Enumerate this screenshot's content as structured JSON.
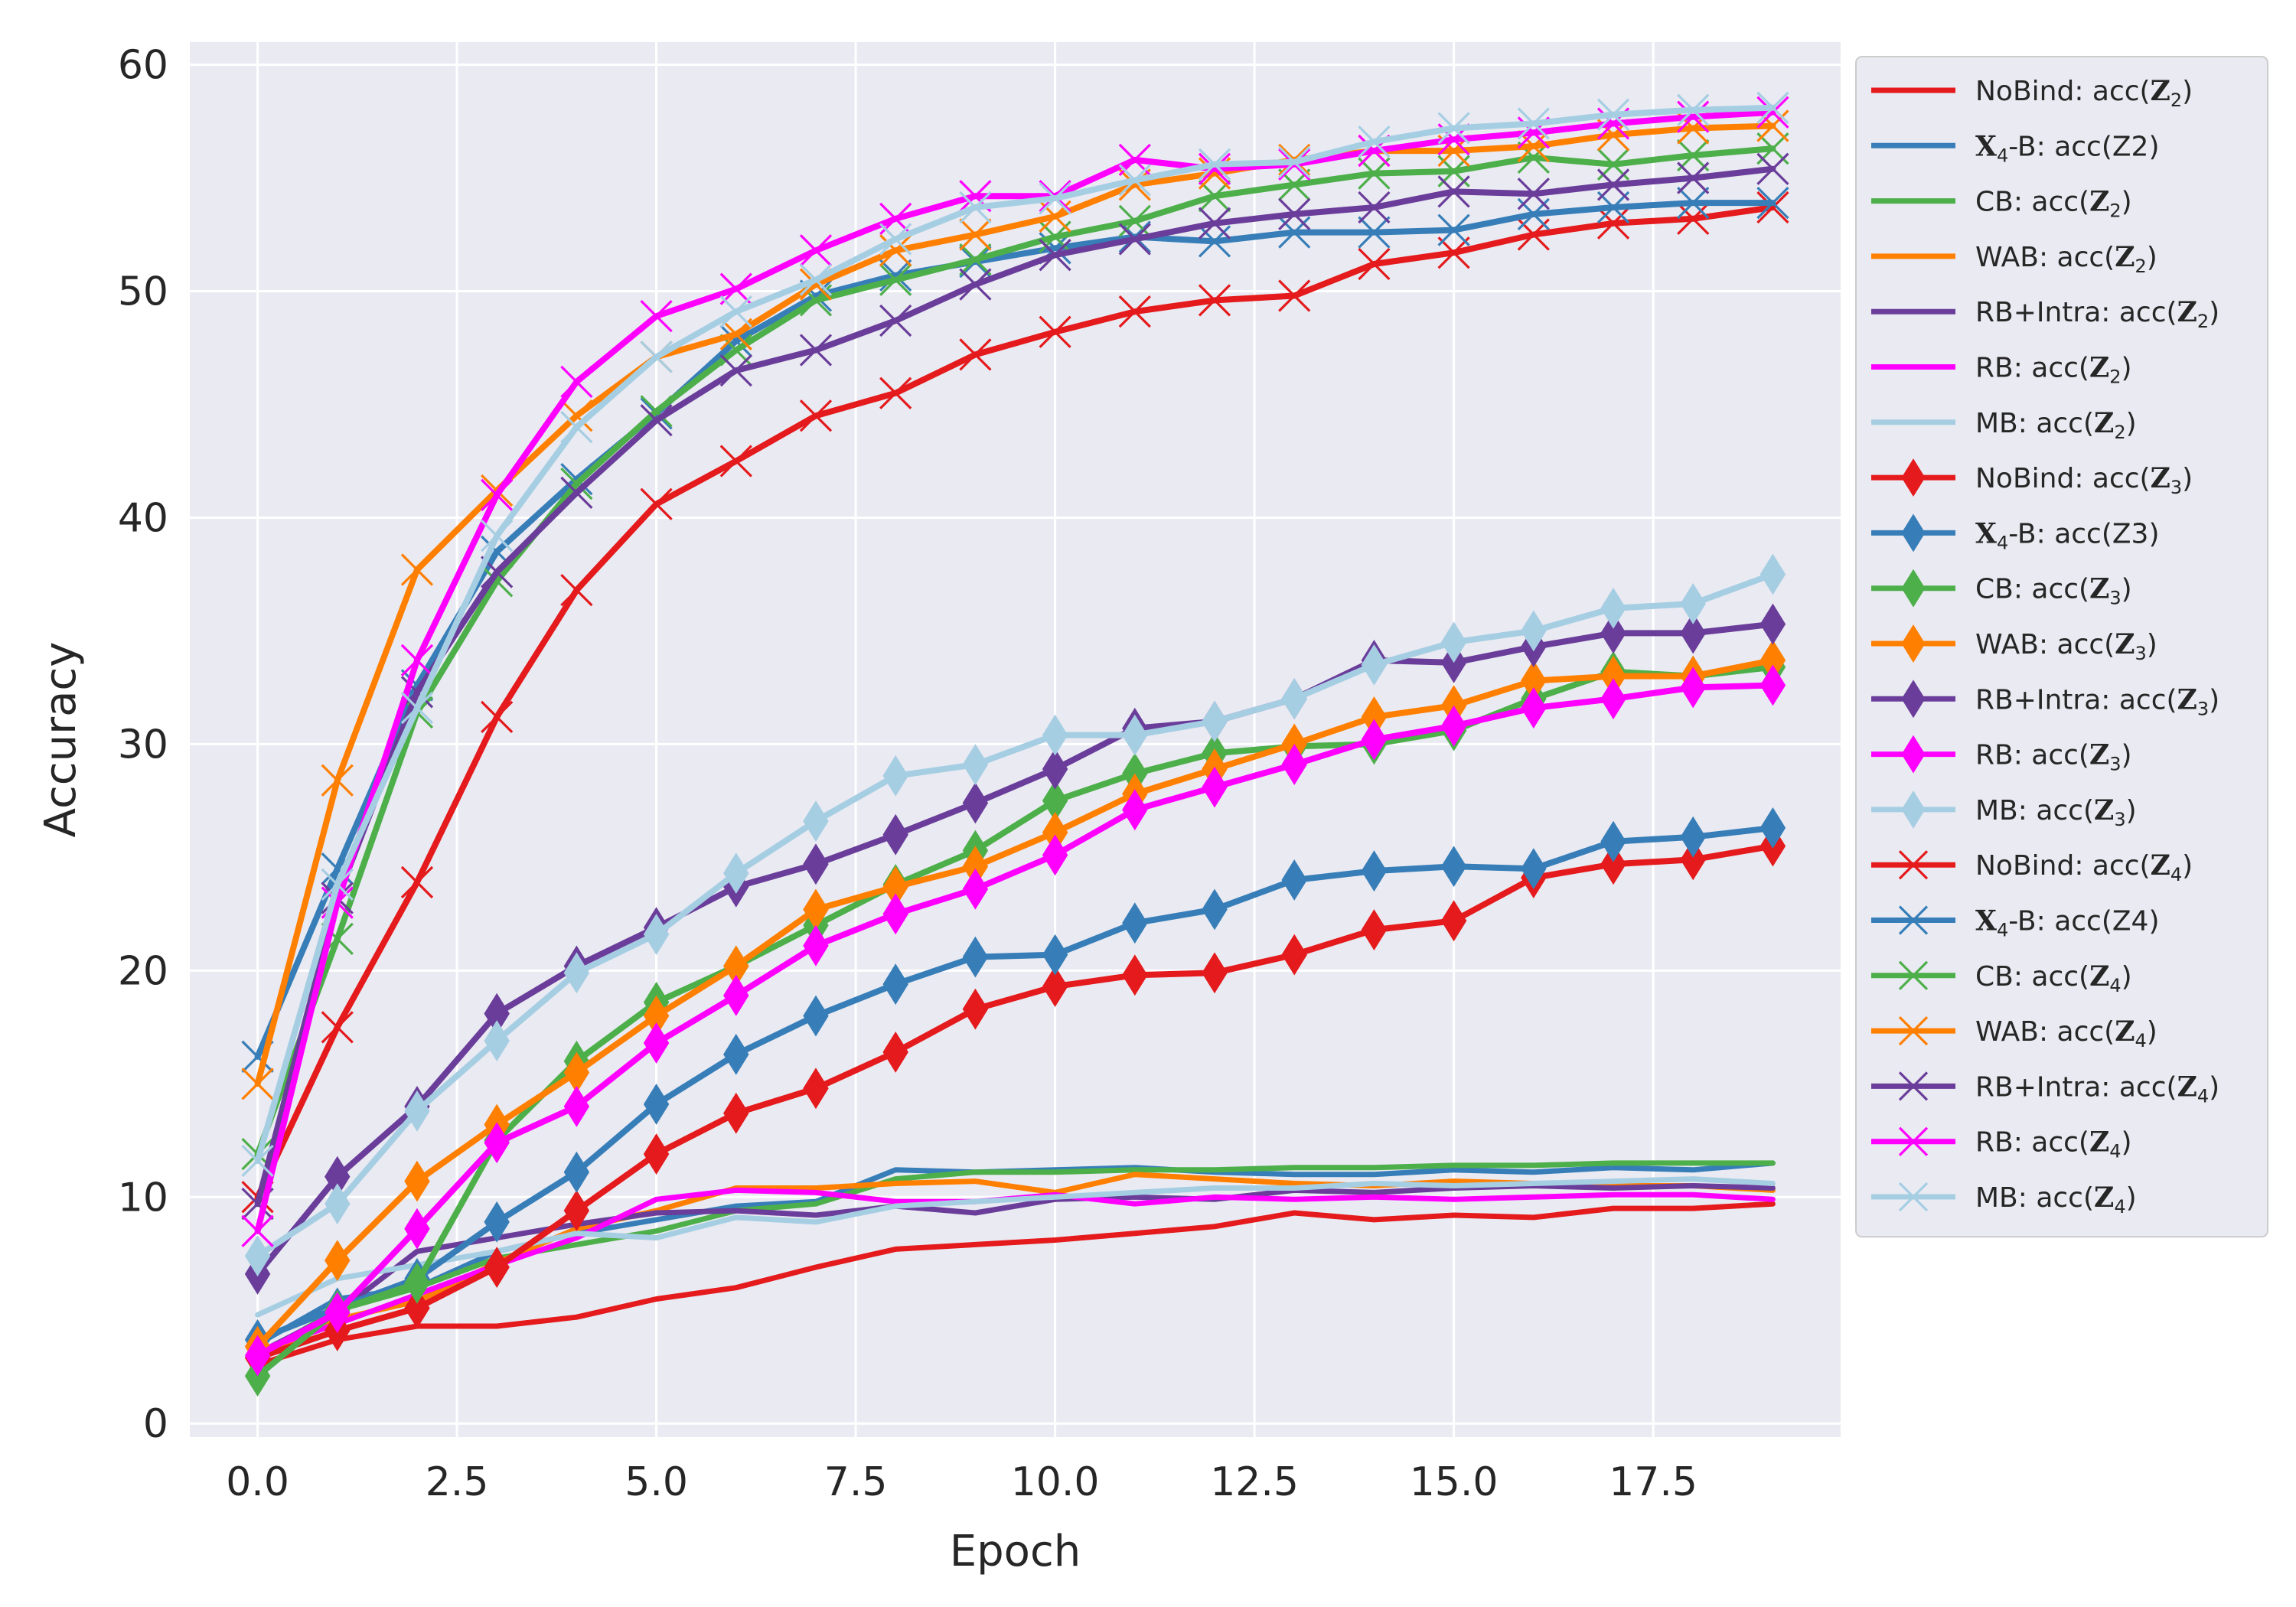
{
  "chart_data": {
    "type": "line",
    "title": "",
    "xlabel": "Epoch",
    "ylabel": "Accuracy",
    "xlim": [
      -0.85,
      19.85
    ],
    "ylim": [
      -0.6,
      61.0
    ],
    "xticks": [
      0.0,
      2.5,
      5.0,
      7.5,
      10.0,
      12.5,
      15.0,
      17.5
    ],
    "xtick_labels": [
      "0.0",
      "2.5",
      "5.0",
      "7.5",
      "10.0",
      "12.5",
      "15.0",
      "17.5"
    ],
    "yticks": [
      0,
      10,
      20,
      30,
      40,
      50,
      60
    ],
    "ytick_labels": [
      "0",
      "10",
      "20",
      "30",
      "40",
      "50",
      "60"
    ],
    "grid": true,
    "legend_position": "outside-right",
    "x": [
      0,
      1,
      2,
      3,
      4,
      5,
      6,
      7,
      8,
      9,
      10,
      11,
      12,
      13,
      14,
      15,
      16,
      17,
      18,
      19
    ],
    "series": [
      {
        "name": "NoBind: acc(Z2)",
        "label_prefix": "NoBind: acc(",
        "label_var": "Z",
        "label_sub": "2",
        "label_suffix": ")",
        "color": "#e41a1c",
        "marker": "none",
        "values": [
          2.6,
          3.7,
          4.3,
          4.3,
          4.7,
          5.5,
          6.0,
          6.9,
          7.7,
          7.9,
          8.1,
          8.4,
          8.7,
          9.3,
          9.0,
          9.2,
          9.1,
          9.5,
          9.5,
          9.7
        ]
      },
      {
        "name": "X4-B: acc(Z2)",
        "label_prefix": "",
        "label_var": "X",
        "label_sub": "4",
        "label_suffix": "-B: acc(Z2)",
        "color": "#377eb8",
        "marker": "none",
        "values": [
          3.5,
          5.5,
          6.0,
          7.6,
          8.4,
          9.0,
          9.6,
          9.8,
          11.2,
          11.1,
          11.2,
          11.3,
          11.1,
          11.0,
          11.0,
          11.2,
          11.1,
          11.3,
          11.2,
          11.5
        ]
      },
      {
        "name": "CB: acc(Z2)",
        "label_prefix": "CB: acc(",
        "label_var": "Z",
        "label_sub": "2",
        "label_suffix": ")",
        "color": "#4daf4a",
        "marker": "none",
        "values": [
          3.0,
          5.0,
          6.0,
          7.3,
          7.9,
          8.5,
          9.4,
          9.7,
          10.8,
          11.1,
          11.1,
          11.2,
          11.2,
          11.3,
          11.3,
          11.4,
          11.4,
          11.5,
          11.5,
          11.5
        ]
      },
      {
        "name": "WAB: acc(Z2)",
        "label_prefix": "WAB: acc(",
        "label_var": "Z",
        "label_sub": "2",
        "label_suffix": ")",
        "color": "#ff7f00",
        "marker": "none",
        "values": [
          2.8,
          4.6,
          5.4,
          7.1,
          8.6,
          9.4,
          10.4,
          10.4,
          10.6,
          10.7,
          10.2,
          11.0,
          10.8,
          10.6,
          10.5,
          10.7,
          10.6,
          10.5,
          10.5,
          10.3
        ]
      },
      {
        "name": "RB+Intra: acc(Z2)",
        "label_prefix": "RB+Intra: acc(",
        "label_var": "Z",
        "label_sub": "2",
        "label_suffix": ")",
        "color": "#6a3d9a",
        "marker": "none",
        "values": [
          3.1,
          4.9,
          7.6,
          8.2,
          8.8,
          9.3,
          9.4,
          9.2,
          9.6,
          9.3,
          9.9,
          10.0,
          9.9,
          10.3,
          10.2,
          10.4,
          10.5,
          10.4,
          10.5,
          10.4
        ]
      },
      {
        "name": "RB: acc(Z2)",
        "label_prefix": "RB: acc(",
        "label_var": "Z",
        "label_sub": "2",
        "label_suffix": ")",
        "color": "#ff00ff",
        "marker": "none",
        "values": [
          3.2,
          4.4,
          5.7,
          7.0,
          8.2,
          9.9,
          10.3,
          10.2,
          9.8,
          9.8,
          10.1,
          9.7,
          10.0,
          9.9,
          10.0,
          9.9,
          10.0,
          10.1,
          10.1,
          9.9
        ]
      },
      {
        "name": "MB: acc(Z2)",
        "label_prefix": "MB: acc(",
        "label_var": "Z",
        "label_sub": "2",
        "label_suffix": ")",
        "color": "#a6cee3",
        "marker": "none",
        "values": [
          4.8,
          6.4,
          7.0,
          7.6,
          8.4,
          8.2,
          9.1,
          8.9,
          9.6,
          9.8,
          10.0,
          10.2,
          10.4,
          10.4,
          10.6,
          10.5,
          10.6,
          10.7,
          10.8,
          10.6
        ]
      },
      {
        "name": "NoBind: acc(Z3)",
        "label_prefix": "NoBind: acc(",
        "label_var": "Z",
        "label_sub": "3",
        "label_suffix": ")",
        "color": "#e41a1c",
        "marker": "diamond",
        "values": [
          2.9,
          4.1,
          5.1,
          6.9,
          9.4,
          11.9,
          13.7,
          14.8,
          16.4,
          18.3,
          19.3,
          19.8,
          19.9,
          20.7,
          21.8,
          22.2,
          24.1,
          24.7,
          24.9,
          25.5
        ]
      },
      {
        "name": "X4-B: acc(Z3)",
        "label_prefix": "",
        "label_var": "X",
        "label_sub": "4",
        "label_suffix": "-B: acc(Z3)",
        "color": "#377eb8",
        "marker": "diamond",
        "values": [
          3.7,
          5.1,
          6.4,
          8.9,
          11.1,
          14.1,
          16.3,
          18.0,
          19.4,
          20.6,
          20.7,
          22.1,
          22.7,
          24.0,
          24.4,
          24.6,
          24.5,
          25.7,
          25.9,
          26.3
        ]
      },
      {
        "name": "CB: acc(Z3)",
        "label_prefix": "CB: acc(",
        "label_var": "Z",
        "label_sub": "3",
        "label_suffix": ")",
        "color": "#4daf4a",
        "marker": "diamond",
        "values": [
          2.1,
          5.0,
          6.2,
          12.5,
          16.0,
          18.6,
          20.2,
          22.0,
          23.8,
          25.3,
          27.5,
          28.7,
          29.6,
          29.9,
          30.0,
          30.6,
          32.0,
          33.2,
          33.0,
          33.4
        ]
      },
      {
        "name": "WAB: acc(Z3)",
        "label_prefix": "WAB: acc(",
        "label_var": "Z",
        "label_sub": "3",
        "label_suffix": ")",
        "color": "#ff7f00",
        "marker": "diamond",
        "values": [
          3.4,
          7.2,
          10.7,
          13.2,
          15.5,
          18.0,
          20.2,
          22.7,
          23.7,
          24.6,
          26.1,
          27.8,
          28.9,
          30.0,
          31.2,
          31.7,
          32.8,
          33.0,
          33.0,
          33.7
        ]
      },
      {
        "name": "RB+Intra: acc(Z3)",
        "label_prefix": "RB+Intra: acc(",
        "label_var": "Z",
        "label_sub": "3",
        "label_suffix": ")",
        "color": "#6a3d9a",
        "marker": "diamond",
        "values": [
          6.6,
          10.9,
          14.0,
          18.1,
          20.2,
          21.9,
          23.7,
          24.7,
          26.0,
          27.4,
          28.9,
          30.7,
          31.0,
          32.0,
          33.7,
          33.6,
          34.3,
          34.9,
          34.9,
          35.3
        ]
      },
      {
        "name": "RB: acc(Z3)",
        "label_prefix": "RB: acc(",
        "label_var": "Z",
        "label_sub": "3",
        "label_suffix": ")",
        "color": "#ff00ff",
        "marker": "diamond",
        "values": [
          3.0,
          4.9,
          8.6,
          12.4,
          14.0,
          16.8,
          18.9,
          21.1,
          22.5,
          23.6,
          25.1,
          27.1,
          28.1,
          29.1,
          30.2,
          30.8,
          31.6,
          32.0,
          32.5,
          32.6
        ]
      },
      {
        "name": "MB: acc(Z3)",
        "label_prefix": "MB: acc(",
        "label_var": "Z",
        "label_sub": "3",
        "label_suffix": ")",
        "color": "#a6cee3",
        "marker": "diamond",
        "values": [
          7.4,
          9.7,
          13.8,
          16.9,
          19.9,
          21.6,
          24.3,
          26.6,
          28.6,
          29.1,
          30.4,
          30.4,
          31.0,
          32.0,
          33.5,
          34.5,
          35.0,
          36.0,
          36.2,
          37.5
        ]
      },
      {
        "name": "NoBind: acc(Z4)",
        "label_prefix": "NoBind: acc(",
        "label_var": "Z",
        "label_sub": "4",
        "label_suffix": ")",
        "color": "#e41a1c",
        "marker": "x",
        "values": [
          10.0,
          17.5,
          23.9,
          31.2,
          36.8,
          40.6,
          42.5,
          44.5,
          45.5,
          47.2,
          48.2,
          49.1,
          49.6,
          49.8,
          51.2,
          51.7,
          52.5,
          53.0,
          53.2,
          53.7
        ]
      },
      {
        "name": "X4-B: acc(Z4)",
        "label_prefix": "",
        "label_var": "X",
        "label_sub": "4",
        "label_suffix": "-B: acc(Z4)",
        "color": "#377eb8",
        "marker": "x",
        "values": [
          16.2,
          24.5,
          32.6,
          38.5,
          41.7,
          44.6,
          47.8,
          49.8,
          50.7,
          51.3,
          51.9,
          52.4,
          52.2,
          52.6,
          52.6,
          52.7,
          53.4,
          53.7,
          53.9,
          53.9
        ]
      },
      {
        "name": "CB: acc(Z4)",
        "label_prefix": "CB: acc(",
        "label_var": "Z",
        "label_sub": "4",
        "label_suffix": ")",
        "color": "#4daf4a",
        "marker": "x",
        "values": [
          11.9,
          21.4,
          31.4,
          37.2,
          41.5,
          44.7,
          47.4,
          49.6,
          50.5,
          51.4,
          52.4,
          53.1,
          54.2,
          54.7,
          55.2,
          55.3,
          55.9,
          55.6,
          56.0,
          56.3
        ]
      },
      {
        "name": "WAB: acc(Z4)",
        "label_prefix": "WAB: acc(",
        "label_var": "Z",
        "label_sub": "4",
        "label_suffix": ")",
        "color": "#ff7f00",
        "marker": "x",
        "values": [
          15.0,
          28.4,
          37.7,
          41.2,
          44.5,
          47.1,
          48.1,
          50.3,
          51.8,
          52.5,
          53.3,
          54.7,
          55.2,
          55.8,
          56.2,
          56.2,
          56.4,
          56.9,
          57.2,
          57.3
        ]
      },
      {
        "name": "RB+Intra: acc(Z4)",
        "label_prefix": "RB+Intra: acc(",
        "label_var": "Z",
        "label_sub": "4",
        "label_suffix": ")",
        "color": "#6a3d9a",
        "marker": "x",
        "values": [
          9.7,
          23.2,
          32.3,
          37.6,
          41.1,
          44.3,
          46.5,
          47.4,
          48.7,
          50.3,
          51.6,
          52.3,
          53.0,
          53.4,
          53.7,
          54.4,
          54.3,
          54.7,
          55.0,
          55.4
        ]
      },
      {
        "name": "RB: acc(Z4)",
        "label_prefix": "RB: acc(",
        "label_var": "Z",
        "label_sub": "4",
        "label_suffix": ")",
        "color": "#ff00ff",
        "marker": "x",
        "values": [
          8.5,
          23.0,
          33.7,
          41.0,
          46.0,
          48.9,
          50.1,
          51.8,
          53.2,
          54.2,
          54.2,
          55.8,
          55.4,
          55.6,
          56.2,
          56.7,
          57.0,
          57.4,
          57.7,
          57.9
        ]
      },
      {
        "name": "MB: acc(Z4)",
        "label_prefix": "MB: acc(",
        "label_var": "Z",
        "label_sub": "4",
        "label_suffix": ")",
        "color": "#a6cee3",
        "marker": "x",
        "values": [
          11.6,
          23.8,
          31.6,
          39.2,
          44.0,
          47.1,
          49.1,
          50.5,
          52.3,
          53.7,
          54.1,
          54.9,
          55.6,
          55.7,
          56.6,
          57.2,
          57.4,
          57.8,
          58.0,
          58.1
        ]
      }
    ]
  }
}
